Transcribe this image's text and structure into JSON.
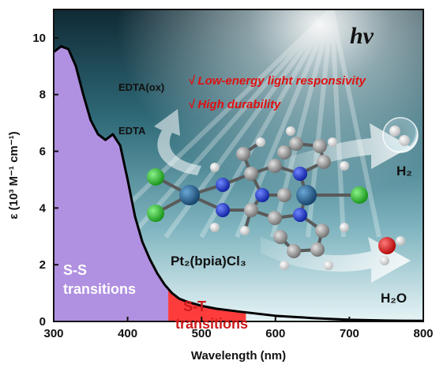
{
  "chart_data": {
    "type": "area",
    "x": [
      300,
      310,
      320,
      330,
      340,
      350,
      360,
      370,
      380,
      390,
      400,
      410,
      420,
      430,
      440,
      450,
      460,
      470,
      480,
      500,
      520,
      550,
      600,
      650,
      700,
      750,
      800
    ],
    "series": [
      {
        "values": [
          9.5,
          9.7,
          9.6,
          9.0,
          8.0,
          7.1,
          6.6,
          6.4,
          6.6,
          6.2,
          5.0,
          3.7,
          2.8,
          2.2,
          1.7,
          1.3,
          1.0,
          0.8,
          0.7,
          0.55,
          0.45,
          0.35,
          0.2,
          0.12,
          0.06,
          0.03,
          0.02
        ]
      }
    ],
    "bands": [
      {
        "label": "S-S\ntransitions",
        "from": 300,
        "to": 455,
        "color": "#b090e0"
      },
      {
        "label": "S-T\ntransitions",
        "from": 455,
        "to": 560,
        "color": "#ff3c3c"
      }
    ],
    "xlabel": "Wavelength (nm)",
    "ylabel": "ε (10³ M⁻¹ cm⁻¹)",
    "xlim": [
      300,
      800
    ],
    "ylim": [
      0,
      11
    ],
    "xticks": [
      300,
      400,
      500,
      600,
      700,
      800
    ],
    "yticks": [
      0,
      2,
      4,
      6,
      8,
      10
    ],
    "grid": false
  },
  "annotations": {
    "hv": "hv",
    "note1": "√ Low-energy light responsivity",
    "note2": "√ High durability",
    "edta_ox": "EDTA(ox)",
    "edta": "EDTA",
    "band_ss_line1": "S-S",
    "band_ss_line2": "transitions",
    "band_st_line1": "S-T",
    "band_st_line2": "transitions",
    "molecule_label": "Pt₂(bpia)Cl₃",
    "product_h2": "H₂",
    "product_h2o": "H₂O"
  },
  "colors": {
    "ss_band": "#b090e0",
    "st_band": "#ff3c3c",
    "note_red": "#e01010",
    "sky_top": "#12303a",
    "sky_mid": "#3e7e8c",
    "sky_bottom": "#d8eef2",
    "pt_atom": "#1d5c8c",
    "cl_atom": "#28c828",
    "n_atom": "#1a34d6",
    "c_atom": "#9a9a9a",
    "h_atom": "#f2f2f2",
    "o_atom": "#e01818"
  }
}
